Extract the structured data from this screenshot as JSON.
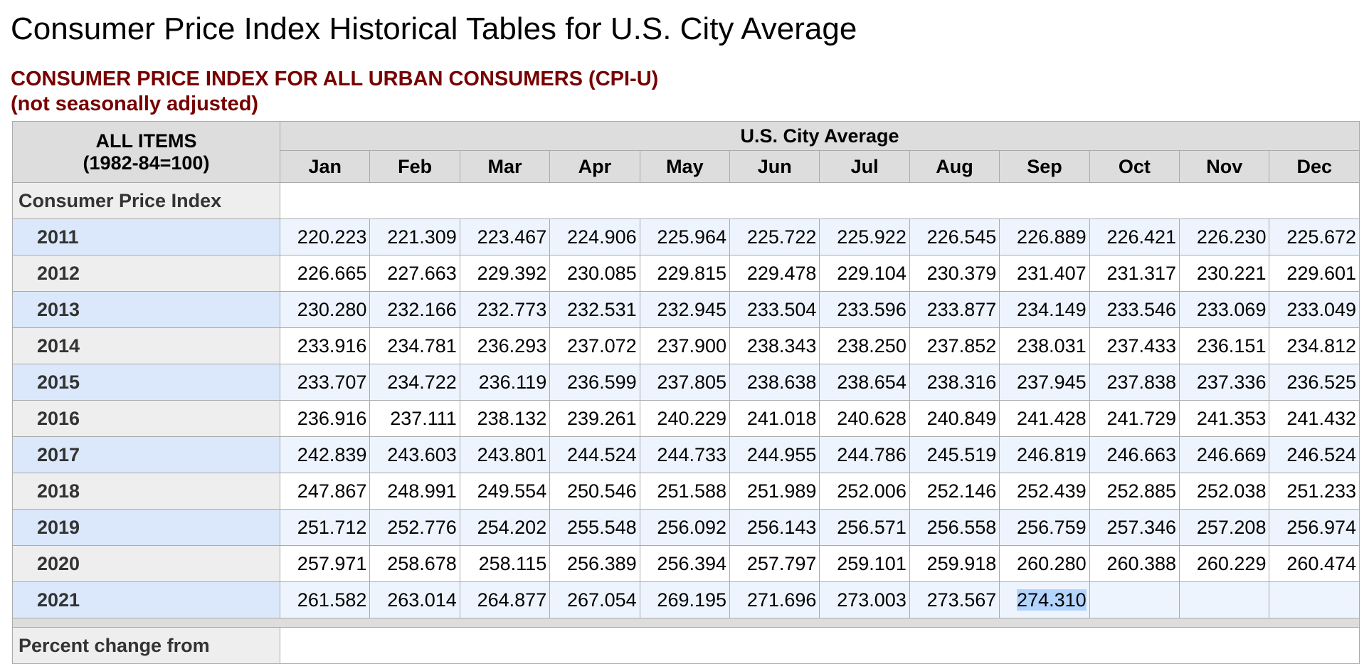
{
  "header": {
    "title": "Consumer Price Index Historical Tables for U.S. City Average",
    "subtitle_1": "CONSUMER PRICE INDEX FOR ALL URBAN CONSUMERS (CPI-U)",
    "subtitle_2": "(not seasonally adjusted)"
  },
  "table": {
    "corner_1": "ALL ITEMS",
    "corner_2": "(1982-84=100)",
    "group": "U.S. City Average",
    "months": [
      "Jan",
      "Feb",
      "Mar",
      "Apr",
      "May",
      "Jun",
      "Jul",
      "Aug",
      "Sep",
      "Oct",
      "Nov",
      "Dec"
    ],
    "section": "Consumer Price Index",
    "rows": [
      {
        "year": "2011",
        "values": [
          "220.223",
          "221.309",
          "223.467",
          "224.906",
          "225.964",
          "225.722",
          "225.922",
          "226.545",
          "226.889",
          "226.421",
          "226.230",
          "225.672"
        ]
      },
      {
        "year": "2012",
        "values": [
          "226.665",
          "227.663",
          "229.392",
          "230.085",
          "229.815",
          "229.478",
          "229.104",
          "230.379",
          "231.407",
          "231.317",
          "230.221",
          "229.601"
        ]
      },
      {
        "year": "2013",
        "values": [
          "230.280",
          "232.166",
          "232.773",
          "232.531",
          "232.945",
          "233.504",
          "233.596",
          "233.877",
          "234.149",
          "233.546",
          "233.069",
          "233.049"
        ]
      },
      {
        "year": "2014",
        "values": [
          "233.916",
          "234.781",
          "236.293",
          "237.072",
          "237.900",
          "238.343",
          "238.250",
          "237.852",
          "238.031",
          "237.433",
          "236.151",
          "234.812"
        ]
      },
      {
        "year": "2015",
        "values": [
          "233.707",
          "234.722",
          "236.119",
          "236.599",
          "237.805",
          "238.638",
          "238.654",
          "238.316",
          "237.945",
          "237.838",
          "237.336",
          "236.525"
        ]
      },
      {
        "year": "2016",
        "values": [
          "236.916",
          "237.111",
          "238.132",
          "239.261",
          "240.229",
          "241.018",
          "240.628",
          "240.849",
          "241.428",
          "241.729",
          "241.353",
          "241.432"
        ]
      },
      {
        "year": "2017",
        "values": [
          "242.839",
          "243.603",
          "243.801",
          "244.524",
          "244.733",
          "244.955",
          "244.786",
          "245.519",
          "246.819",
          "246.663",
          "246.669",
          "246.524"
        ]
      },
      {
        "year": "2018",
        "values": [
          "247.867",
          "248.991",
          "249.554",
          "250.546",
          "251.588",
          "251.989",
          "252.006",
          "252.146",
          "252.439",
          "252.885",
          "252.038",
          "251.233"
        ]
      },
      {
        "year": "2019",
        "values": [
          "251.712",
          "252.776",
          "254.202",
          "255.548",
          "256.092",
          "256.143",
          "256.571",
          "256.558",
          "256.759",
          "257.346",
          "257.208",
          "256.974"
        ]
      },
      {
        "year": "2020",
        "values": [
          "257.971",
          "258.678",
          "258.115",
          "256.389",
          "256.394",
          "257.797",
          "259.101",
          "259.918",
          "260.280",
          "260.388",
          "260.229",
          "260.474"
        ]
      },
      {
        "year": "2021",
        "values": [
          "261.582",
          "263.014",
          "264.877",
          "267.054",
          "269.195",
          "271.696",
          "273.003",
          "273.567",
          "274.310"
        ]
      }
    ],
    "footer_section": "Percent change from"
  }
}
